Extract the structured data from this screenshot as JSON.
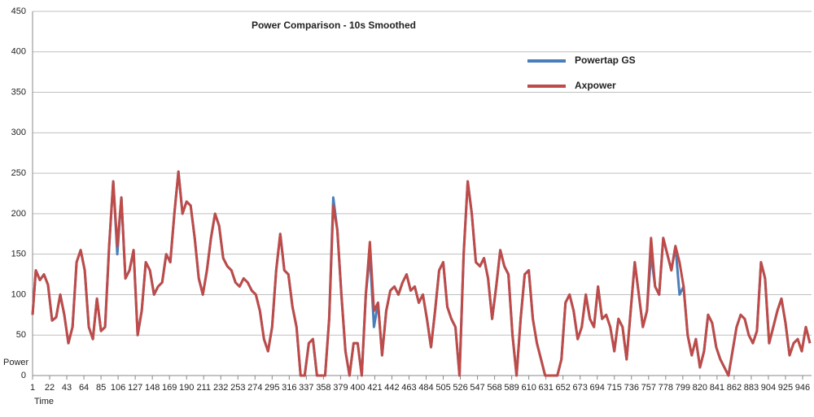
{
  "chart_data": {
    "type": "line",
    "title": "Power Comparison - 10s Smoothed",
    "y_label": "Power",
    "x_label": "Time",
    "x": [
      1,
      5,
      10,
      15,
      20,
      25,
      30,
      35,
      40,
      45,
      50,
      55,
      60,
      65,
      70,
      75,
      80,
      85,
      90,
      95,
      100,
      105,
      110,
      115,
      120,
      125,
      130,
      135,
      140,
      145,
      150,
      155,
      160,
      165,
      170,
      175,
      180,
      185,
      190,
      195,
      200,
      205,
      210,
      215,
      220,
      225,
      230,
      235,
      240,
      245,
      250,
      255,
      260,
      265,
      270,
      275,
      280,
      285,
      290,
      295,
      300,
      305,
      310,
      315,
      320,
      325,
      330,
      335,
      340,
      345,
      350,
      355,
      360,
      365,
      370,
      375,
      380,
      385,
      390,
      395,
      400,
      405,
      410,
      415,
      420,
      425,
      430,
      435,
      440,
      445,
      450,
      455,
      460,
      465,
      470,
      475,
      480,
      485,
      490,
      495,
      500,
      505,
      510,
      515,
      520,
      525,
      530,
      535,
      540,
      545,
      550,
      555,
      560,
      565,
      570,
      575,
      580,
      585,
      590,
      595,
      600,
      605,
      610,
      615,
      620,
      625,
      630,
      635,
      640,
      645,
      650,
      655,
      660,
      665,
      670,
      675,
      680,
      685,
      690,
      695,
      700,
      705,
      710,
      715,
      720,
      725,
      730,
      735,
      740,
      745,
      750,
      755,
      760,
      765,
      770,
      775,
      780,
      785,
      790,
      795,
      800,
      805,
      810,
      815,
      820,
      825,
      830,
      835,
      840,
      845,
      850,
      855,
      860,
      865,
      870,
      875,
      880,
      885,
      890,
      895,
      900,
      905,
      910,
      915,
      920,
      925,
      930,
      935,
      940,
      945,
      950,
      955
    ],
    "series": [
      {
        "name": "Powertap GS",
        "color": "#4a7ebb",
        "values": [
          75,
          130,
          118,
          125,
          112,
          68,
          72,
          100,
          75,
          40,
          60,
          140,
          155,
          130,
          60,
          45,
          95,
          55,
          60,
          160,
          240,
          150,
          220,
          120,
          130,
          155,
          50,
          80,
          140,
          130,
          100,
          110,
          115,
          150,
          140,
          200,
          252,
          200,
          215,
          210,
          170,
          120,
          100,
          130,
          170,
          200,
          185,
          145,
          135,
          130,
          115,
          110,
          120,
          115,
          105,
          100,
          80,
          45,
          30,
          60,
          130,
          175,
          130,
          125,
          85,
          60,
          0,
          0,
          40,
          45,
          0,
          0,
          0,
          70,
          220,
          180,
          100,
          30,
          0,
          40,
          40,
          0,
          100,
          150,
          60,
          90,
          25,
          80,
          105,
          110,
          100,
          115,
          125,
          105,
          110,
          90,
          100,
          70,
          35,
          80,
          130,
          140,
          85,
          70,
          60,
          0,
          150,
          240,
          200,
          140,
          135,
          145,
          120,
          70,
          110,
          155,
          135,
          125,
          50,
          0,
          70,
          125,
          130,
          70,
          40,
          20,
          0,
          0,
          0,
          0,
          20,
          90,
          100,
          80,
          45,
          60,
          100,
          70,
          60,
          110,
          70,
          75,
          60,
          30,
          70,
          60,
          20,
          80,
          140,
          100,
          60,
          80,
          150,
          110,
          100,
          170,
          150,
          130,
          160,
          100,
          110,
          50,
          25,
          45,
          10,
          30,
          75,
          65,
          35,
          20,
          10,
          0,
          30,
          60,
          75,
          70,
          50,
          40,
          55,
          140,
          120,
          40,
          60,
          80,
          95,
          65,
          25,
          40,
          45,
          30,
          60,
          40
        ]
      },
      {
        "name": "Axpower",
        "color": "#be4b48",
        "values": [
          75,
          130,
          118,
          125,
          112,
          68,
          72,
          100,
          75,
          40,
          60,
          140,
          155,
          130,
          60,
          45,
          95,
          55,
          60,
          160,
          240,
          160,
          220,
          120,
          130,
          155,
          50,
          80,
          140,
          130,
          100,
          110,
          115,
          150,
          140,
          200,
          252,
          200,
          215,
          210,
          170,
          120,
          100,
          130,
          170,
          200,
          185,
          145,
          135,
          130,
          115,
          110,
          120,
          115,
          105,
          100,
          80,
          45,
          30,
          60,
          130,
          175,
          130,
          125,
          85,
          60,
          0,
          0,
          40,
          45,
          0,
          0,
          0,
          70,
          210,
          180,
          100,
          30,
          0,
          40,
          40,
          0,
          100,
          165,
          80,
          90,
          25,
          80,
          105,
          110,
          100,
          115,
          125,
          105,
          110,
          90,
          100,
          70,
          35,
          80,
          130,
          140,
          85,
          70,
          60,
          0,
          150,
          240,
          200,
          140,
          135,
          145,
          120,
          70,
          110,
          155,
          135,
          125,
          50,
          0,
          70,
          125,
          130,
          70,
          40,
          20,
          0,
          0,
          0,
          0,
          20,
          90,
          100,
          80,
          45,
          60,
          100,
          70,
          60,
          110,
          70,
          75,
          60,
          30,
          70,
          60,
          20,
          80,
          140,
          100,
          60,
          80,
          170,
          110,
          100,
          170,
          150,
          130,
          160,
          140,
          110,
          50,
          25,
          45,
          10,
          30,
          75,
          65,
          35,
          20,
          10,
          0,
          30,
          60,
          75,
          70,
          50,
          40,
          55,
          140,
          120,
          40,
          60,
          80,
          95,
          65,
          25,
          40,
          45,
          30,
          60,
          40
        ]
      }
    ],
    "xlim": [
      1,
      957
    ],
    "xticks": [
      1,
      22,
      43,
      64,
      85,
      106,
      127,
      148,
      169,
      190,
      211,
      232,
      253,
      274,
      295,
      316,
      337,
      358,
      379,
      400,
      421,
      442,
      463,
      484,
      505,
      526,
      547,
      568,
      589,
      610,
      631,
      652,
      673,
      694,
      715,
      736,
      757,
      778,
      799,
      820,
      841,
      862,
      883,
      904,
      925,
      946
    ],
    "ylim": [
      0,
      450
    ],
    "yticks": [
      0,
      50,
      100,
      150,
      200,
      250,
      300,
      350,
      400,
      450
    ],
    "grid": true
  }
}
